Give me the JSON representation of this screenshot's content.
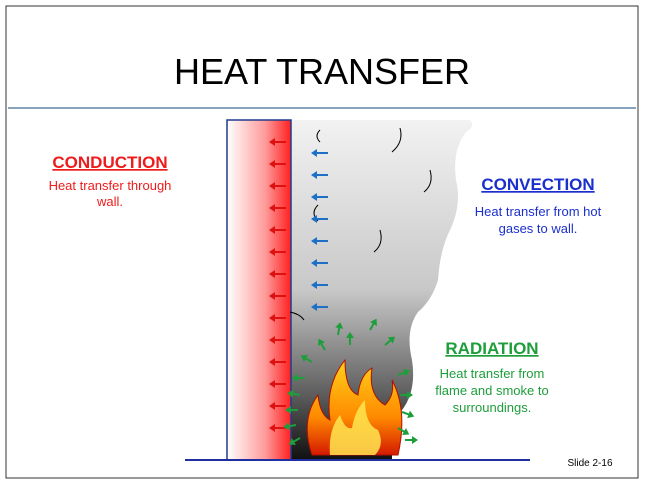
{
  "title": "HEAT TRANSFER",
  "conduction": {
    "heading": "CONDUCTION",
    "lines": [
      "Heat transfer through",
      "wall."
    ]
  },
  "convection": {
    "heading": "CONVECTION",
    "lines": [
      "Heat transfer from hot",
      "gases to wall."
    ]
  },
  "radiation": {
    "heading": "RADIATION",
    "lines": [
      "Heat transfer from",
      "flame and smoke to",
      "surroundings."
    ]
  },
  "slide_number": "Slide 2-16"
}
